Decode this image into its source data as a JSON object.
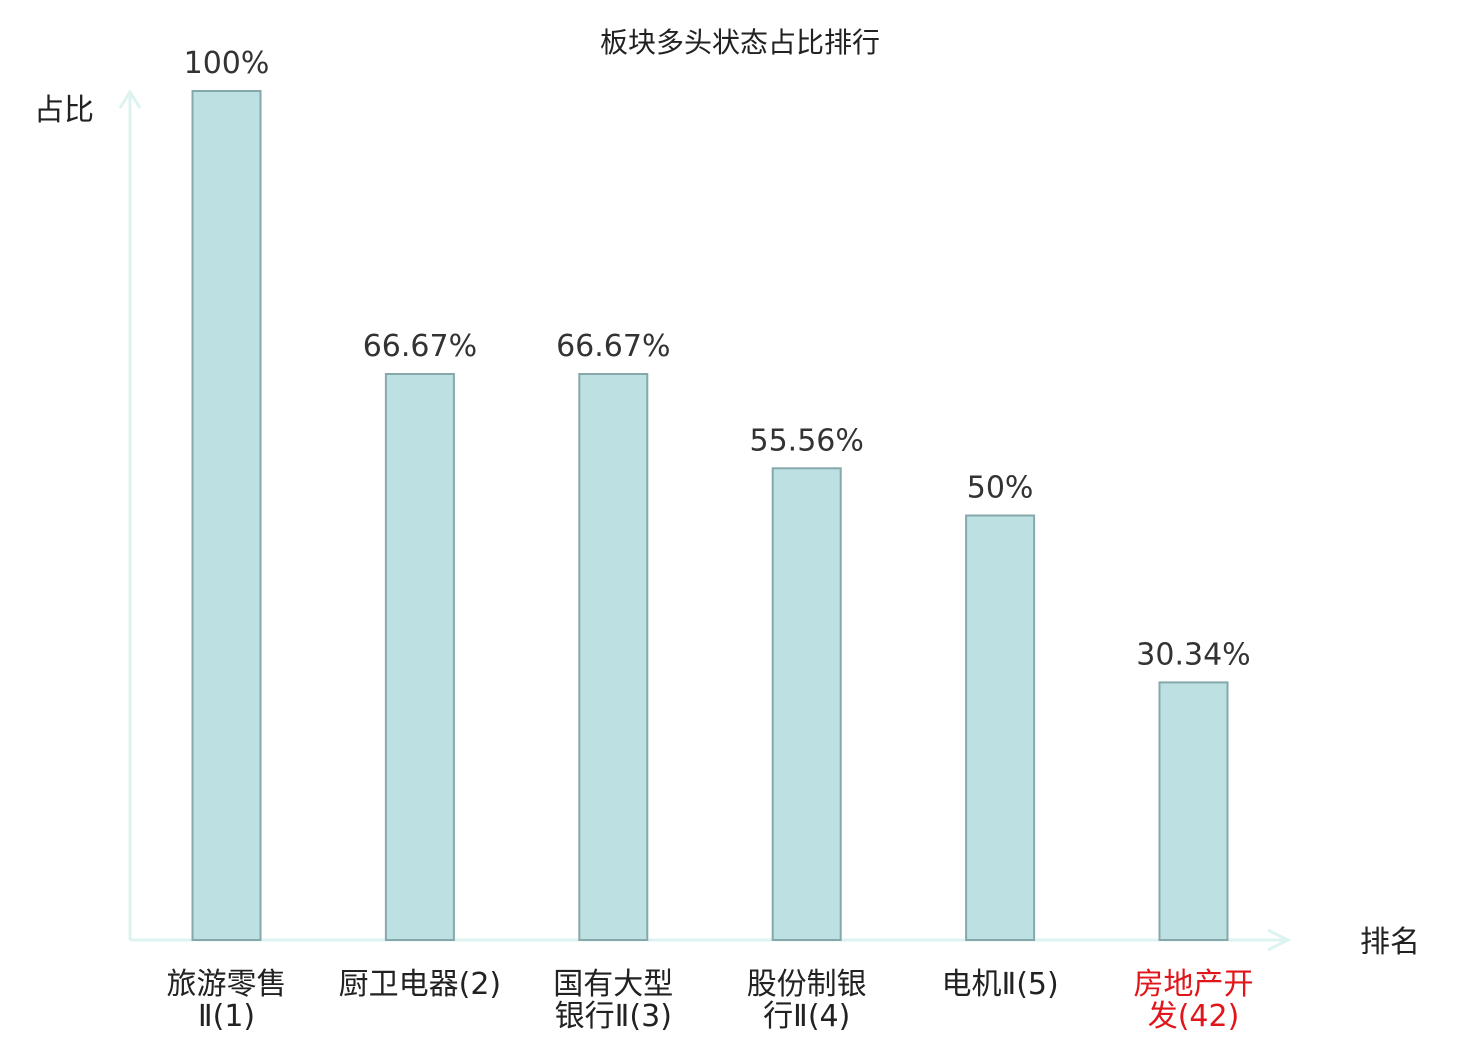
{
  "chart_data": {
    "type": "bar",
    "title": "板块多头状态占比排行",
    "ylabel": "占比",
    "xlabel": "排名",
    "ylim": [
      0,
      100
    ],
    "grid": false,
    "categories": [
      {
        "lines": [
          "旅游零售",
          "Ⅱ(1)"
        ],
        "highlight": false
      },
      {
        "lines": [
          "厨卫电器(2)"
        ],
        "highlight": false
      },
      {
        "lines": [
          "国有大型",
          "银行Ⅱ(3)"
        ],
        "highlight": false
      },
      {
        "lines": [
          "股份制银",
          "行Ⅱ(4)"
        ],
        "highlight": false
      },
      {
        "lines": [
          "电机Ⅱ(5)"
        ],
        "highlight": false
      },
      {
        "lines": [
          "房地产开",
          "发(42)"
        ],
        "highlight": true
      }
    ],
    "values": [
      100,
      66.67,
      66.67,
      55.56,
      50,
      30.34
    ],
    "value_labels": [
      "100%",
      "66.67%",
      "66.67%",
      "55.56%",
      "50%",
      "30.34%"
    ]
  },
  "colors": {
    "bar_fill": "#bde0e3",
    "bar_stroke": "#86a8ab",
    "axis": "#ddf3f0",
    "highlight_text": "#e0161b",
    "text": "#222222"
  }
}
